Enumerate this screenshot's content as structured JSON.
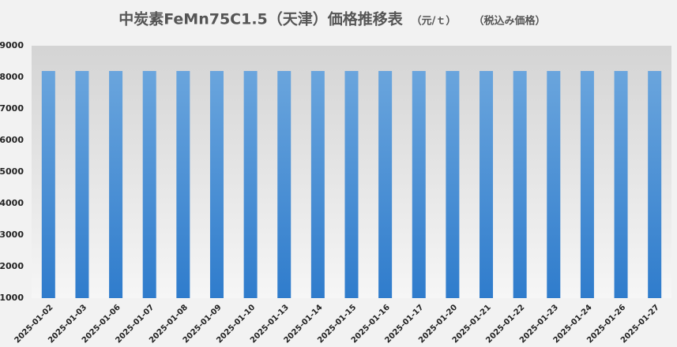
{
  "chart_data": {
    "type": "bar",
    "title": "中炭素FeMn75C1.5（天津）価格推移表",
    "unit": "（元/ｔ）",
    "note": "（税込み価格）",
    "categories": [
      "2025-01-02",
      "2025-01-03",
      "2025-01-06",
      "2025-01-07",
      "2025-01-08",
      "2025-01-09",
      "2025-01-10",
      "2025-01-13",
      "2025-01-14",
      "2025-01-15",
      "2025-01-16",
      "2025-01-17",
      "2025-01-20",
      "2025-01-21",
      "2025-01-22",
      "2025-01-23",
      "2025-01-24",
      "2025-01-26",
      "2025-01-27"
    ],
    "values": [
      8200,
      8200,
      8200,
      8200,
      8200,
      8200,
      8200,
      8200,
      8200,
      8200,
      8200,
      8200,
      8200,
      8200,
      8200,
      8200,
      8200,
      8200,
      8200
    ],
    "color": "#4a8fd6",
    "ylim": [
      1000,
      9000
    ],
    "yticks": [
      1000,
      2000,
      3000,
      4000,
      5000,
      6000,
      7000,
      8000,
      9000
    ],
    "grid": false
  }
}
